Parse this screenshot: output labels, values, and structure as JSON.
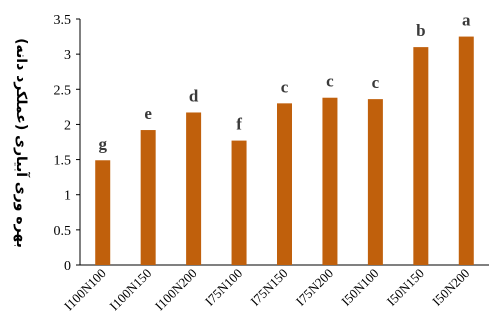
{
  "chart_data": {
    "type": "bar",
    "title": "",
    "xlabel": "",
    "ylabel": "بهره وری آبیاری (عملکرد دانه)",
    "ylim": [
      0,
      3.5
    ],
    "yticks": [
      "0",
      "0.5",
      "1",
      "1.5",
      "2",
      "2.5",
      "3",
      "3.5"
    ],
    "yticks_values": [
      0,
      0.5,
      1,
      1.5,
      2,
      2.5,
      3,
      3.5
    ],
    "grid": false,
    "legend": "none",
    "bar_color": "#C0600C",
    "categories": [
      "I100N100",
      "I100N150",
      "I100N200",
      "I75N100",
      "I75N150",
      "I75N200",
      "I50N100",
      "I50N150",
      "I50N200"
    ],
    "values": [
      1.49,
      1.92,
      2.17,
      1.77,
      2.3,
      2.38,
      2.36,
      3.1,
      3.25
    ],
    "data_labels": [
      "g",
      "e",
      "d",
      "f",
      "c",
      "c",
      "c",
      "b",
      "a"
    ]
  }
}
